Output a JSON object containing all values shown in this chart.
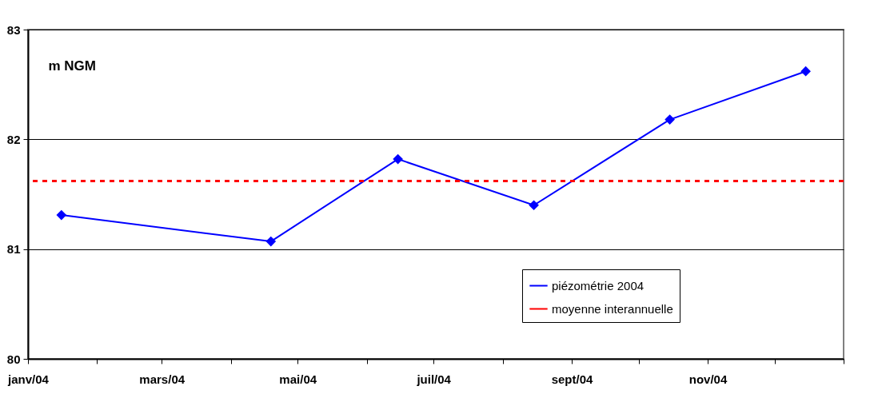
{
  "chart_data": {
    "type": "line",
    "ylabel": "m NGM",
    "xlim": [
      "2004-01-01",
      "2005-01-01"
    ],
    "xticks": [
      {
        "value": "2004-01-01",
        "label": "janv/04"
      },
      {
        "value": "2004-02-01",
        "label": null
      },
      {
        "value": "2004-03-01",
        "label": "mars/04"
      },
      {
        "value": "2004-04-01",
        "label": null
      },
      {
        "value": "2004-05-01",
        "label": "mai/04"
      },
      {
        "value": "2004-06-01",
        "label": null
      },
      {
        "value": "2004-07-01",
        "label": "juil/04"
      },
      {
        "value": "2004-08-01",
        "label": null
      },
      {
        "value": "2004-09-01",
        "label": "sept/04"
      },
      {
        "value": "2004-10-01",
        "label": null
      },
      {
        "value": "2004-11-01",
        "label": "nov/04"
      },
      {
        "value": "2004-12-01",
        "label": null
      },
      {
        "value": "2005-01-01",
        "label": null
      }
    ],
    "ylim": [
      80,
      83
    ],
    "yticks": [
      80,
      81,
      82,
      83
    ],
    "grid": "y",
    "legend": "bottom right",
    "marker": "diamond",
    "line_style": "solid",
    "series": [
      {
        "name": "piézométrie 2004",
        "color": "#0000ff",
        "x": [
          "2004-01-16",
          "2004-04-19",
          "2004-06-15",
          "2004-08-15",
          "2004-10-15",
          "2004-12-15"
        ],
        "values": [
          81.31,
          81.07,
          81.82,
          81.4,
          82.18,
          82.62
        ]
      }
    ],
    "ref_lines": [
      {
        "axis": "y",
        "value": 81.62,
        "label": "moyenne interannuelle",
        "color": "#ff0000",
        "line_style": "dashed"
      }
    ]
  }
}
